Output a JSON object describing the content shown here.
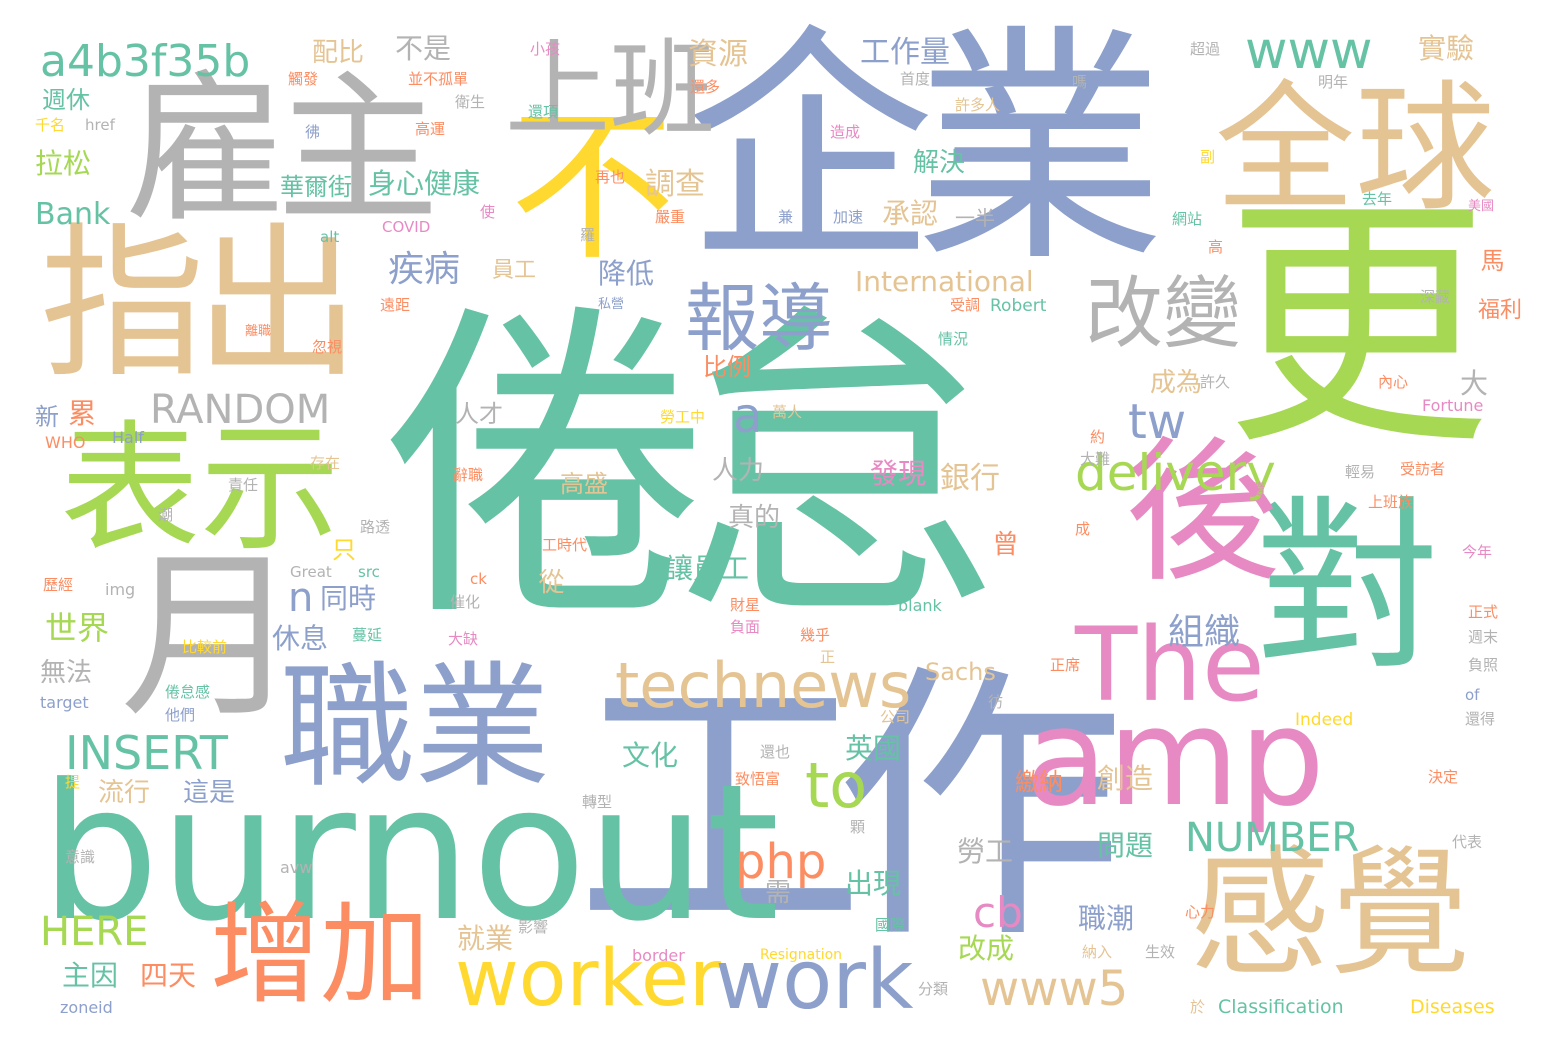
{
  "palette": {
    "teal": "#66c2a5",
    "orange": "#fc8d62",
    "periwinkle": "#8da0cb",
    "pink": "#e78ac3",
    "lime": "#a6d854",
    "yellow": "#ffd92f",
    "tan": "#e5c494",
    "gray": "#b3b3b3"
  },
  "words": {
    "juandai": "倦怠",
    "gongzuo": "工作",
    "qiye": "企業",
    "geng": "更",
    "guzhu": "雇主",
    "zhichu": "指出",
    "burnout": "burnout",
    "biaoshi": "表示",
    "yue": "月",
    "quanqiu": "全球",
    "bu": "不",
    "shangban": "上班",
    "zhiye": "職業",
    "dui": "對",
    "hou": "後",
    "ganjue": "感覺",
    "amp": "amp",
    "zengjia": "增加",
    "the": "The",
    "baodao": "報導",
    "gaibian": "改變",
    "technews": "technews",
    "worker": "worker",
    "work": "work",
    "delivery": "delivery",
    "www": "www",
    "www5": "www5",
    "hash": "a4b3f35b",
    "random": "RANDOM",
    "insert": "INSERT",
    "number": "NUMBER",
    "php": "php",
    "to": "to",
    "tw": "tw",
    "a": "a",
    "cb": "cb",
    "n": "n",
    "here": "HERE",
    "international": "International",
    "jibing": "疾病",
    "zhouxiu": "週休",
    "lasong": "拉松",
    "bank": "Bank",
    "peibi": "配比",
    "bushi": "不是",
    "ziyuan": "資源",
    "gongzuoliang": "工作量",
    "shiyan": "實驗",
    "huaerjie": "華爾街",
    "shenxin": "身心健康",
    "diaocha": "調查",
    "jiejue": "解決",
    "chengren": "承認",
    "yiban": "一半",
    "yuangong": "員工",
    "jiangdi": "降低",
    "bili": "比例",
    "chengwei": "成為",
    "da": "大",
    "ma": "馬",
    "fuli": "福利",
    "xin": "新",
    "lei": "累",
    "rencai": "人才",
    "renli": "人力",
    "faxian": "發現",
    "yinhang": "銀行",
    "gaosheng": "高盛",
    "zhende": "真的",
    "zhi": "只",
    "rangyuangong": "讓員工",
    "tongshi": "同時",
    "shijie": "世界",
    "xiuxi": "休息",
    "zuzhi": "組織",
    "cong": "從",
    "wufa": "無法",
    "sachs": "Sachs",
    "wenhua": "文化",
    "yingguo": "英國",
    "liuxing": "流行",
    "zheshi": "這是",
    "chuangzao": "創造",
    "jiaona": "繳納",
    "laogong": "勞工",
    "xu": "需",
    "wenti": "問題",
    "chuxian": "出現",
    "jiuye": "就業",
    "zhichao": "職潮",
    "gaicheng": "改成",
    "zhuyin": "主因",
    "sitian": "四天",
    "ceng": "曾",
    "xiaohai": "小孩",
    "chaoguo": "超過",
    "yingfa": "觸發",
    "bingbu": "並不孤單",
    "ma2": "嗎",
    "shoudu": "首度",
    "mingnian": "明年",
    "huanduo": "還多",
    "weisheng": "衛生",
    "huanxiang": "還項",
    "gaoyun": "高運",
    "qianming": "千名",
    "href": "href",
    "fo": "彿",
    "zaocheng": "造成",
    "xuduoren": "許多人",
    "fu": "副",
    "zaiye": "再也",
    "yanzhong": "嚴重",
    "jiasu": "加速",
    "qunian": "去年",
    "meiguo": "美國",
    "wangzhan": "網站",
    "shi": "使",
    "luo": "羅",
    "jian": "兼",
    "alt": "alt",
    "covid": "COVID",
    "gao": "高",
    "siying": "私營",
    "yuanju": "遠距",
    "lizhi": "離職",
    "hushi": "忽視",
    "shoudu2": "受調",
    "qingkuang": "情況",
    "robert": "Robert",
    "shencang": "深藏",
    "xujiu": "許久",
    "neixin": "內心",
    "fortune": "Fortune",
    "who": "WHO",
    "half": "Half",
    "laogongzhong": "勞工中",
    "wanren": "萬人",
    "yue2": "約",
    "dajie": "大難",
    "qingyi": "輕易",
    "shoufangzhe": "受訪者",
    "cizhi": "辭職",
    "zeren": "責任",
    "chao": "潮",
    "cunzai": "存在",
    "lutou": "路透",
    "sui": "隨",
    "shangbanzu": "上班族",
    "gongshidai": "工時代",
    "cheng": "成",
    "jinnian": "今年",
    "great": "Great",
    "src": "src",
    "ck": "ck",
    "lijing": "歷經",
    "img": "img",
    "cuihua": "催化",
    "caixing": "財星",
    "jihu": "幾乎",
    "blank": "blank",
    "zhengshi": "正式",
    "zhoumo": "週末",
    "fumian": "負面",
    "fuzhao": "負照",
    "zheng": "正",
    "bijiaoqian": "比較前",
    "manyan": "蔓延",
    "dakuai": "大缺",
    "zhengyu": "正席",
    "juandaigan": "倦怠感",
    "tamen": "他們",
    "target": "target",
    "gongsi": "公司",
    "fang": "彷",
    "of": "of",
    "indeed": "Indeed",
    "huande": "還得",
    "huanye": "還也",
    "zhimufu": "致悟富",
    "jueding": "決定",
    "zhuanxing": "轉型",
    "guo": "顆",
    "daibiao": "代表",
    "yishi": "意識",
    "avw": "avw",
    "xinli": "心力",
    "yingxiang": "影響",
    "shengxiao": "生效",
    "guoji": "國際",
    "border": "border",
    "resignation": "Resignation",
    "nayu": "納入",
    "fenlei": "分類",
    "yu": "於",
    "classification": "Classification",
    "diseases": "Diseases",
    "zoneid": "zoneid",
    "ti": "提"
  }
}
